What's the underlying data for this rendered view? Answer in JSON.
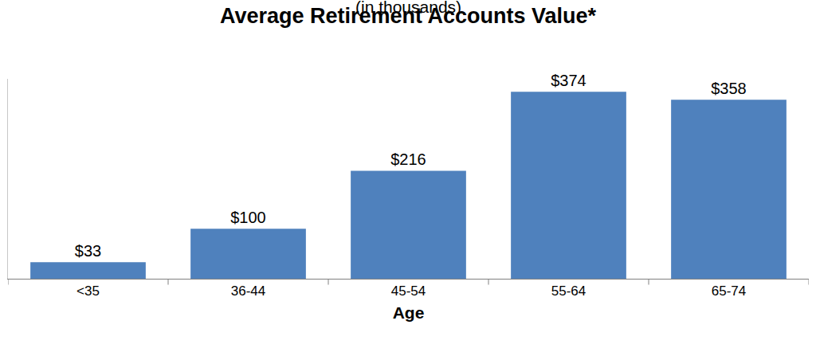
{
  "chart_data": {
    "type": "bar",
    "title": "Average Retirement Accounts Value*",
    "subtitle": "(in thousands)",
    "x_label": "Age",
    "categories": [
      "<35",
      "36-44",
      "45-54",
      "55-64",
      "65-74"
    ],
    "values": [
      33,
      100,
      216,
      374,
      358
    ],
    "value_labels": [
      "$33",
      "$100",
      "$216",
      "$374",
      "$358"
    ],
    "color": "#4f81bd",
    "ylim": [
      0,
      400
    ],
    "grid": false,
    "data_labels": true,
    "tick_labels": "x"
  }
}
